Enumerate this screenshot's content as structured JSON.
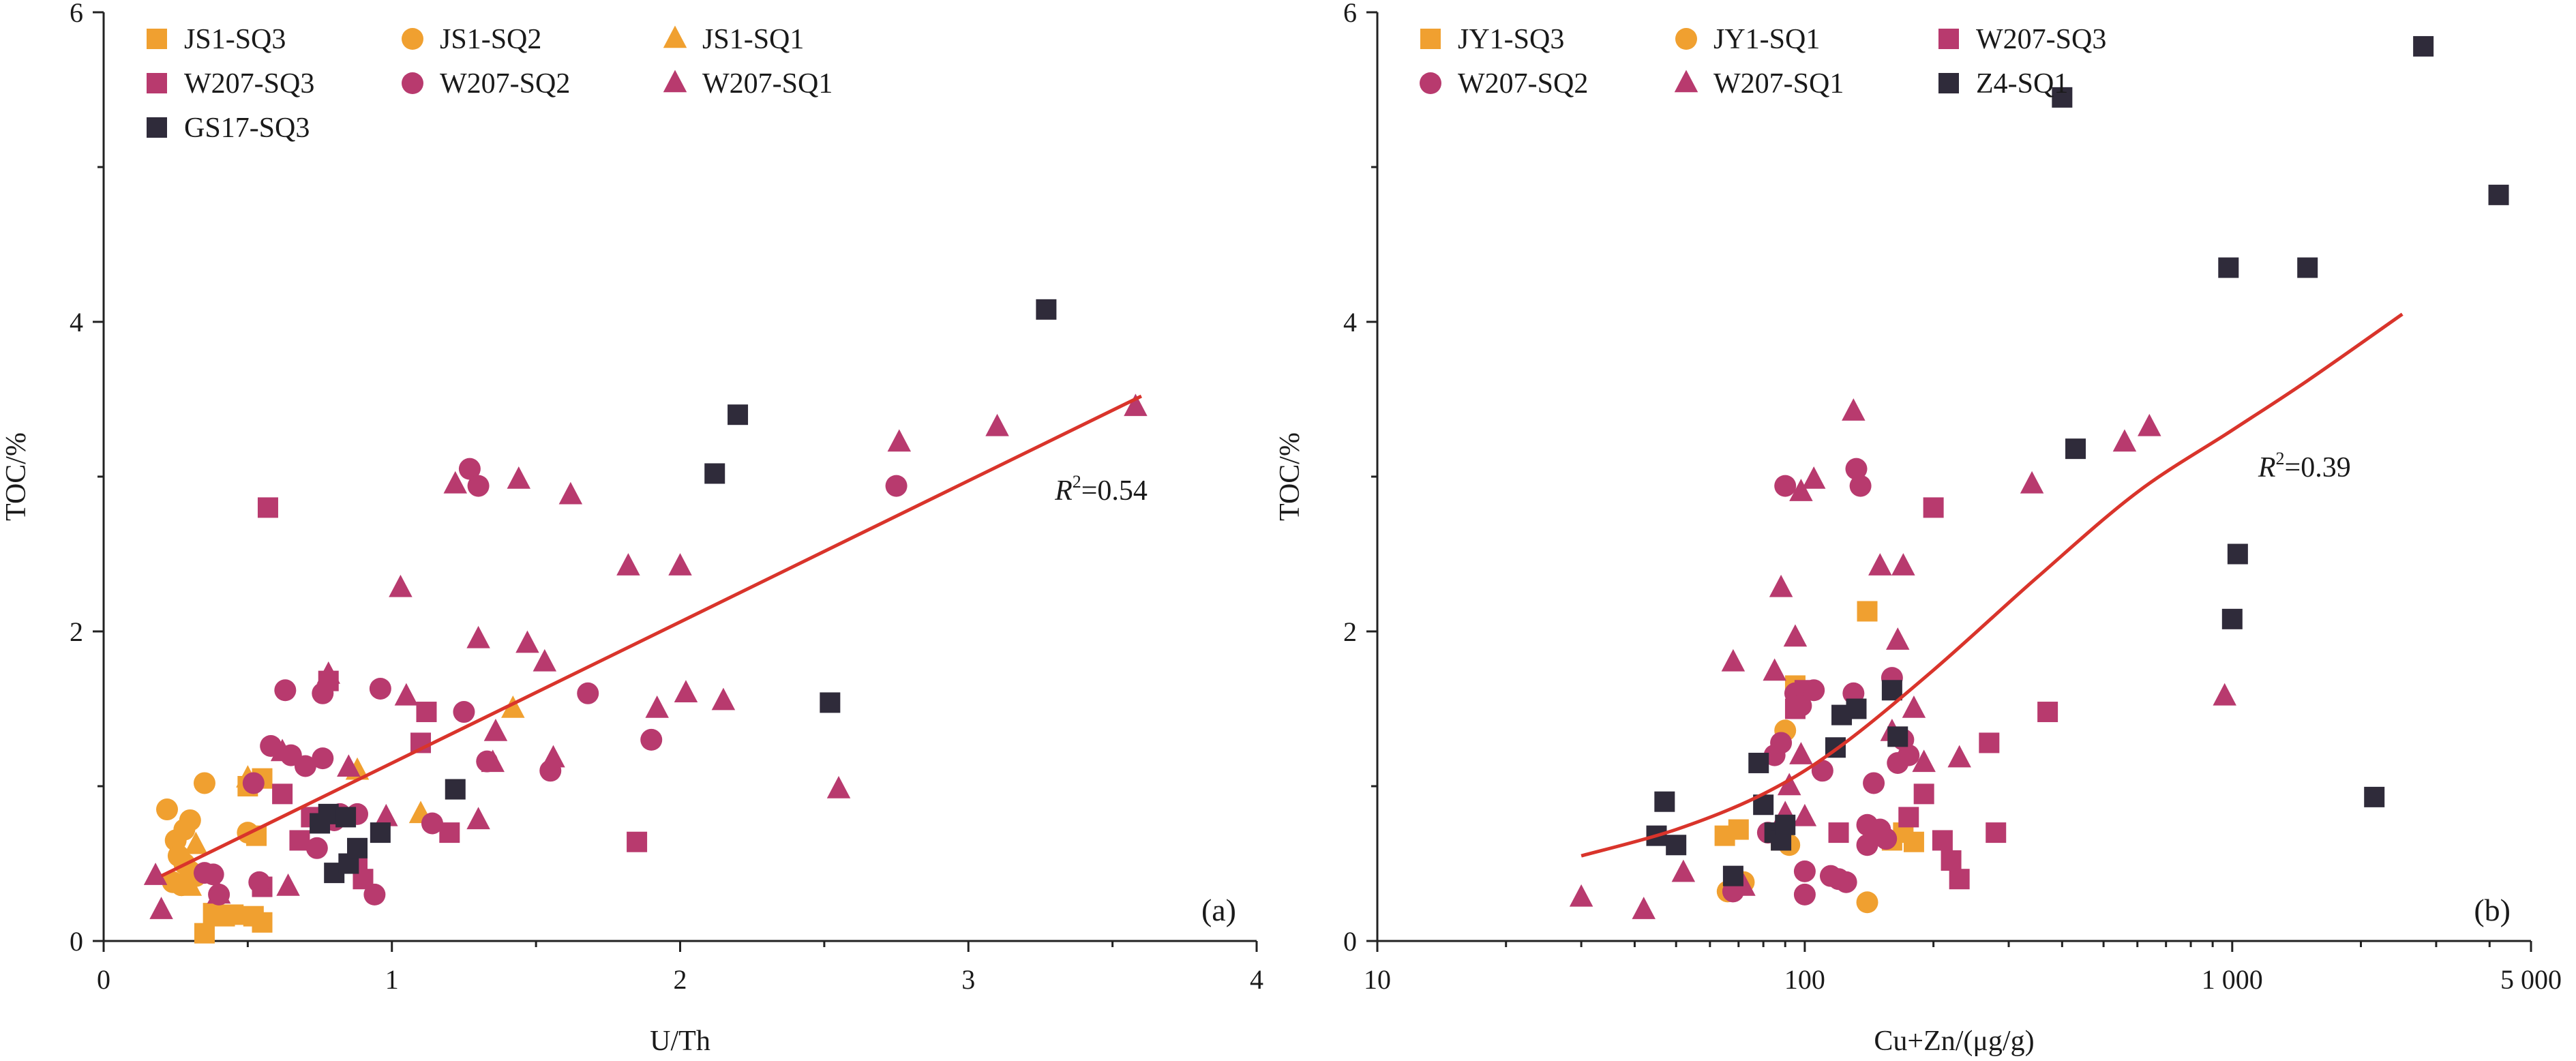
{
  "colors": {
    "orange": "#f0a030",
    "magenta": "#b83a6e",
    "dark": "#2f2b3a",
    "fit": "#d9342b"
  },
  "chart_data": [
    {
      "type": "scatter",
      "panel_label": "(a)",
      "xlabel": "U/Th",
      "ylabel": "TOC/%",
      "xscale": "linear",
      "xlim": [
        0,
        4
      ],
      "ylim": [
        0,
        6
      ],
      "xticks": [
        0,
        1,
        2,
        3,
        4
      ],
      "xtick_labels": [
        "0",
        "1",
        "2",
        "3",
        "4"
      ],
      "yticks": [
        0,
        2,
        4,
        6
      ],
      "ytick_labels": [
        "0",
        "2",
        "4",
        "6"
      ],
      "legend_placement": "top-left",
      "grid": false,
      "fit": {
        "label_prefix": "R",
        "label_sup": "2",
        "label_value": "=0.54",
        "label_anchor": [
          3.3,
          2.85
        ],
        "points": [
          [
            0.2,
            0.42
          ],
          [
            3.6,
            3.52
          ]
        ]
      },
      "series": [
        {
          "name": "JS1-SQ3",
          "marker": "square",
          "color": "orange",
          "points": [
            [
              0.35,
              0.05
            ],
            [
              0.38,
              0.18
            ],
            [
              0.42,
              0.16
            ],
            [
              0.45,
              0.17
            ],
            [
              0.52,
              0.16
            ],
            [
              0.55,
              0.12
            ],
            [
              0.5,
              1.0
            ],
            [
              0.55,
              1.05
            ],
            [
              0.53,
              0.68
            ]
          ]
        },
        {
          "name": "JS1-SQ2",
          "marker": "circle",
          "color": "orange",
          "points": [
            [
              0.22,
              0.85
            ],
            [
              0.25,
              0.65
            ],
            [
              0.28,
              0.72
            ],
            [
              0.3,
              0.78
            ],
            [
              0.26,
              0.55
            ],
            [
              0.28,
              0.5
            ],
            [
              0.3,
              0.45
            ],
            [
              0.35,
              1.02
            ],
            [
              0.24,
              0.38
            ],
            [
              0.27,
              0.36
            ],
            [
              0.32,
              0.42
            ],
            [
              0.5,
              0.7
            ]
          ]
        },
        {
          "name": "JS1-SQ1",
          "marker": "triangle",
          "color": "orange",
          "points": [
            [
              0.3,
              0.35
            ],
            [
              0.32,
              0.62
            ],
            [
              0.88,
              1.1
            ],
            [
              1.1,
              0.82
            ],
            [
              1.42,
              1.5
            ],
            [
              0.5,
              1.05
            ]
          ]
        },
        {
          "name": "W207-SQ3",
          "marker": "square",
          "color": "magenta",
          "points": [
            [
              0.57,
              2.8
            ],
            [
              0.62,
              0.95
            ],
            [
              0.68,
              0.65
            ],
            [
              0.72,
              0.8
            ],
            [
              0.78,
              1.68
            ],
            [
              0.88,
              0.5
            ],
            [
              0.9,
              0.4
            ],
            [
              1.1,
              1.28
            ],
            [
              1.12,
              1.48
            ],
            [
              1.2,
              0.7
            ],
            [
              1.85,
              0.64
            ],
            [
              0.55,
              0.35
            ]
          ]
        },
        {
          "name": "W207-SQ2",
          "marker": "circle",
          "color": "magenta",
          "points": [
            [
              0.35,
              0.44
            ],
            [
              0.38,
              0.43
            ],
            [
              0.4,
              0.3
            ],
            [
              0.52,
              1.02
            ],
            [
              0.54,
              0.38
            ],
            [
              0.58,
              1.26
            ],
            [
              0.63,
              1.62
            ],
            [
              0.65,
              1.2
            ],
            [
              0.7,
              1.13
            ],
            [
              0.74,
              0.6
            ],
            [
              0.76,
              1.18
            ],
            [
              0.76,
              1.6
            ],
            [
              0.8,
              0.78
            ],
            [
              0.82,
              0.82
            ],
            [
              0.88,
              0.82
            ],
            [
              0.94,
              0.3
            ],
            [
              0.96,
              1.63
            ],
            [
              1.14,
              0.76
            ],
            [
              1.25,
              1.48
            ],
            [
              1.27,
              3.05
            ],
            [
              1.3,
              2.94
            ],
            [
              1.33,
              1.16
            ],
            [
              1.55,
              1.1
            ],
            [
              1.68,
              1.6
            ],
            [
              1.9,
              1.3
            ],
            [
              2.75,
              2.94
            ]
          ]
        },
        {
          "name": "W207-SQ1",
          "marker": "triangle",
          "color": "magenta",
          "points": [
            [
              0.18,
              0.42
            ],
            [
              0.2,
              0.2
            ],
            [
              0.4,
              0.3
            ],
            [
              0.62,
              1.22
            ],
            [
              0.64,
              0.35
            ],
            [
              0.78,
              1.72
            ],
            [
              0.85,
              1.12
            ],
            [
              0.98,
              0.8
            ],
            [
              1.03,
              2.28
            ],
            [
              1.05,
              1.58
            ],
            [
              1.22,
              2.95
            ],
            [
              1.3,
              1.95
            ],
            [
              1.3,
              0.78
            ],
            [
              1.35,
              1.15
            ],
            [
              1.36,
              1.35
            ],
            [
              1.44,
              2.98
            ],
            [
              1.47,
              1.92
            ],
            [
              1.53,
              1.8
            ],
            [
              1.56,
              1.18
            ],
            [
              1.62,
              2.88
            ],
            [
              1.82,
              2.42
            ],
            [
              1.92,
              1.5
            ],
            [
              2.0,
              2.42
            ],
            [
              2.02,
              1.6
            ],
            [
              2.15,
              1.55
            ],
            [
              2.55,
              0.98
            ],
            [
              2.76,
              3.22
            ],
            [
              3.1,
              3.32
            ],
            [
              3.58,
              3.45
            ]
          ]
        },
        {
          "name": "GS17-SQ3",
          "marker": "square",
          "color": "dark",
          "points": [
            [
              0.75,
              0.76
            ],
            [
              0.78,
              0.82
            ],
            [
              0.8,
              0.44
            ],
            [
              0.84,
              0.8
            ],
            [
              0.85,
              0.5
            ],
            [
              0.88,
              0.6
            ],
            [
              0.96,
              0.7
            ],
            [
              1.22,
              0.98
            ],
            [
              2.12,
              3.02
            ],
            [
              2.2,
              3.4
            ],
            [
              2.52,
              1.54
            ],
            [
              3.27,
              4.08
            ]
          ]
        }
      ]
    },
    {
      "type": "scatter",
      "panel_label": "(b)",
      "xlabel": "Cu+Zn/(μg/g)",
      "ylabel": "TOC/%",
      "xscale": "log",
      "xlim": [
        10,
        5000
      ],
      "ylim": [
        0,
        6
      ],
      "xticks": [
        10,
        100,
        1000,
        5000
      ],
      "xtick_labels": [
        "10",
        "100",
        "1 000",
        "5 000"
      ],
      "yticks": [
        0,
        2,
        4,
        6
      ],
      "ytick_labels": [
        "0",
        "2",
        "4",
        "6"
      ],
      "legend_placement": "top-left",
      "grid": false,
      "fit": {
        "label_prefix": "R",
        "label_sup": "2",
        "label_value": "=0.39",
        "label_anchor": [
          1150,
          3.0
        ],
        "points": [
          [
            30,
            0.55
          ],
          [
            50,
            0.72
          ],
          [
            80,
            0.95
          ],
          [
            120,
            1.25
          ],
          [
            200,
            1.75
          ],
          [
            350,
            2.35
          ],
          [
            600,
            2.9
          ],
          [
            1000,
            3.3
          ],
          [
            1500,
            3.62
          ],
          [
            2500,
            4.05
          ]
        ]
      },
      "series": [
        {
          "name": "JY1-SQ3",
          "marker": "square",
          "color": "orange",
          "points": [
            [
              65,
              0.68
            ],
            [
              70,
              0.72
            ],
            [
              95,
              1.65
            ],
            [
              140,
              2.13
            ],
            [
              160,
              0.65
            ],
            [
              170,
              0.7
            ],
            [
              180,
              0.64
            ],
            [
              88,
              0.65
            ]
          ]
        },
        {
          "name": "JY1-SQ1",
          "marker": "circle",
          "color": "orange",
          "points": [
            [
              66,
              0.32
            ],
            [
              72,
              0.38
            ],
            [
              90,
              1.36
            ],
            [
              92,
              0.62
            ],
            [
              140,
              0.25
            ]
          ]
        },
        {
          "name": "W207-SQ3",
          "marker": "square",
          "color": "magenta",
          "points": [
            [
              120,
              0.7
            ],
            [
              150,
              0.68
            ],
            [
              175,
              0.8
            ],
            [
              190,
              0.95
            ],
            [
              200,
              2.8
            ],
            [
              210,
              0.65
            ],
            [
              220,
              0.52
            ],
            [
              230,
              0.4
            ],
            [
              270,
              1.28
            ],
            [
              280,
              0.7
            ],
            [
              370,
              1.48
            ],
            [
              100,
              1.62
            ],
            [
              95,
              1.5
            ]
          ]
        },
        {
          "name": "W207-SQ2",
          "marker": "circle",
          "color": "magenta",
          "points": [
            [
              68,
              0.32
            ],
            [
              82,
              0.7
            ],
            [
              85,
              1.2
            ],
            [
              88,
              1.28
            ],
            [
              90,
              2.94
            ],
            [
              95,
              1.6
            ],
            [
              98,
              1.52
            ],
            [
              100,
              0.3
            ],
            [
              100,
              0.45
            ],
            [
              105,
              1.62
            ],
            [
              110,
              1.1
            ],
            [
              115,
              0.42
            ],
            [
              120,
              0.4
            ],
            [
              125,
              0.38
            ],
            [
              130,
              1.6
            ],
            [
              132,
              3.05
            ],
            [
              135,
              2.94
            ],
            [
              140,
              0.75
            ],
            [
              140,
              0.62
            ],
            [
              145,
              1.02
            ],
            [
              150,
              0.72
            ],
            [
              155,
              0.66
            ],
            [
              160,
              1.7
            ],
            [
              165,
              1.15
            ],
            [
              170,
              1.3
            ],
            [
              175,
              1.2
            ]
          ]
        },
        {
          "name": "W207-SQ1",
          "marker": "triangle",
          "color": "magenta",
          "points": [
            [
              30,
              0.28
            ],
            [
              42,
              0.2
            ],
            [
              52,
              0.44
            ],
            [
              68,
              1.8
            ],
            [
              72,
              0.35
            ],
            [
              85,
              1.74
            ],
            [
              88,
              2.28
            ],
            [
              90,
              0.82
            ],
            [
              92,
              1.0
            ],
            [
              95,
              1.96
            ],
            [
              98,
              2.9
            ],
            [
              100,
              0.8
            ],
            [
              105,
              2.98
            ],
            [
              130,
              3.42
            ],
            [
              150,
              2.42
            ],
            [
              160,
              1.35
            ],
            [
              165,
              1.94
            ],
            [
              170,
              2.42
            ],
            [
              180,
              1.5
            ],
            [
              190,
              1.15
            ],
            [
              230,
              1.18
            ],
            [
              340,
              2.95
            ],
            [
              560,
              3.22
            ],
            [
              640,
              3.32
            ],
            [
              960,
              1.58
            ],
            [
              98,
              1.2
            ]
          ]
        },
        {
          "name": "Z4-SQ1",
          "marker": "square",
          "color": "dark",
          "points": [
            [
              45,
              0.68
            ],
            [
              47,
              0.9
            ],
            [
              50,
              0.62
            ],
            [
              68,
              0.42
            ],
            [
              78,
              1.15
            ],
            [
              80,
              0.88
            ],
            [
              85,
              0.7
            ],
            [
              88,
              0.65
            ],
            [
              90,
              0.75
            ],
            [
              118,
              1.25
            ],
            [
              122,
              1.46
            ],
            [
              132,
              1.5
            ],
            [
              160,
              1.62
            ],
            [
              165,
              1.32
            ],
            [
              400,
              5.45
            ],
            [
              430,
              3.18
            ],
            [
              980,
              4.35
            ],
            [
              1000,
              2.08
            ],
            [
              1030,
              2.5
            ],
            [
              1500,
              4.35
            ],
            [
              2150,
              0.93
            ],
            [
              2800,
              5.78
            ],
            [
              4200,
              4.82
            ]
          ]
        }
      ]
    }
  ]
}
